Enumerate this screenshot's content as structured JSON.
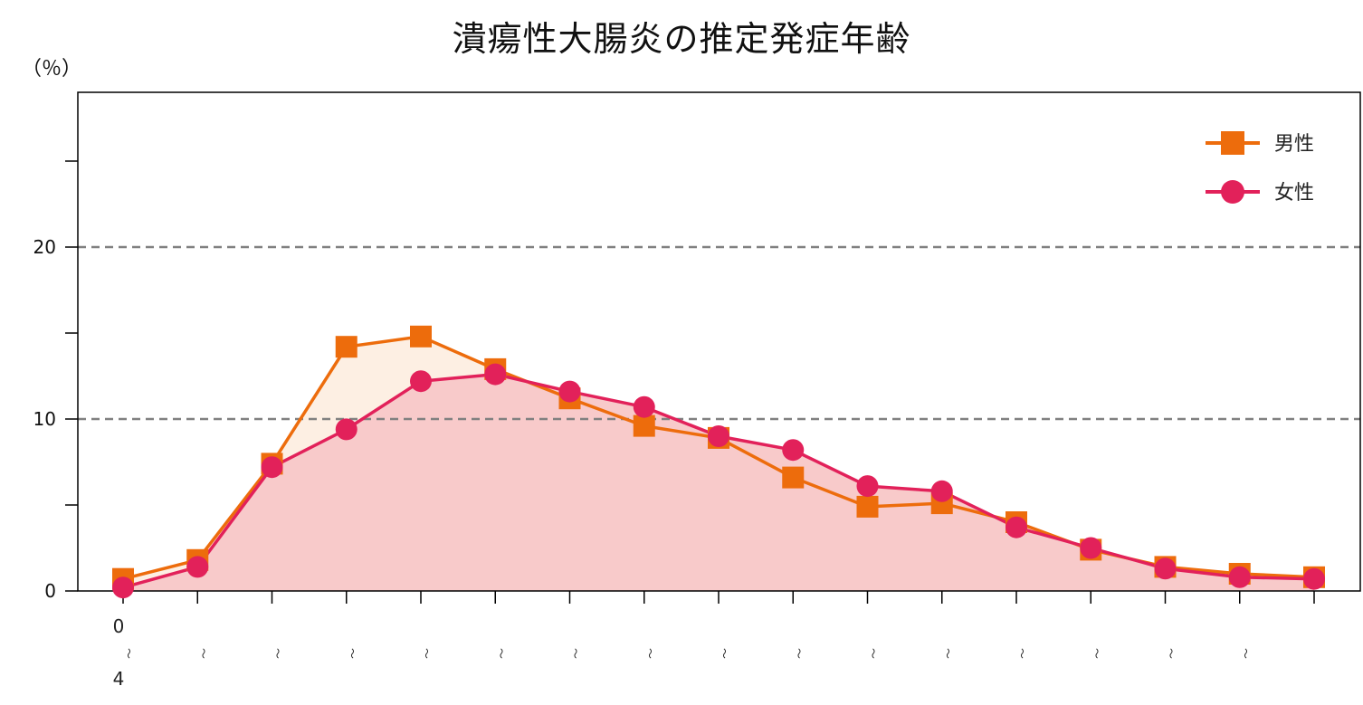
{
  "chart_data": {
    "type": "line",
    "title": "潰瘍性大腸炎の推定発症年齢",
    "y_unit": "（％）",
    "ylim": [
      0,
      29
    ],
    "yticks": [
      0,
      10,
      20
    ],
    "ytick_minor": [
      5,
      15,
      25
    ],
    "grid": "dashed at 10 and 20",
    "legend_position": "top-right",
    "x_labels": [
      {
        "top": "0",
        "mid": "〜",
        "bottom": "4"
      },
      {
        "top": "",
        "mid": "〜",
        "bottom": ""
      },
      {
        "top": "",
        "mid": "〜",
        "bottom": ""
      },
      {
        "top": "",
        "mid": "〜",
        "bottom": ""
      },
      {
        "top": "",
        "mid": "〜",
        "bottom": ""
      },
      {
        "top": "",
        "mid": "〜",
        "bottom": ""
      },
      {
        "top": "",
        "mid": "〜",
        "bottom": ""
      },
      {
        "top": "",
        "mid": "〜",
        "bottom": ""
      },
      {
        "top": "",
        "mid": "〜",
        "bottom": ""
      },
      {
        "top": "",
        "mid": "〜",
        "bottom": ""
      },
      {
        "top": "",
        "mid": "〜",
        "bottom": ""
      },
      {
        "top": "",
        "mid": "〜",
        "bottom": ""
      },
      {
        "top": "",
        "mid": "〜",
        "bottom": ""
      },
      {
        "top": "",
        "mid": "〜",
        "bottom": ""
      },
      {
        "top": "",
        "mid": "〜",
        "bottom": ""
      },
      {
        "top": "",
        "mid": "〜",
        "bottom": ""
      },
      {
        "top": "",
        "mid": "",
        "bottom": ""
      }
    ],
    "series": [
      {
        "name": "男性",
        "marker": "square",
        "color": "#ED6C0C",
        "fill": "#FDEFE3",
        "values": [
          0.7,
          1.8,
          7.4,
          14.2,
          14.8,
          12.9,
          11.2,
          9.6,
          8.9,
          6.6,
          4.9,
          5.1,
          4.0,
          2.4,
          1.4,
          1.0,
          0.8
        ]
      },
      {
        "name": "女性",
        "marker": "circle",
        "color": "#E2215A",
        "fill": "#F8CACA",
        "values": [
          0.2,
          1.4,
          7.2,
          9.4,
          12.2,
          12.6,
          11.6,
          10.7,
          9.0,
          8.2,
          6.1,
          5.8,
          3.7,
          2.5,
          1.3,
          0.8,
          0.7
        ]
      }
    ]
  }
}
